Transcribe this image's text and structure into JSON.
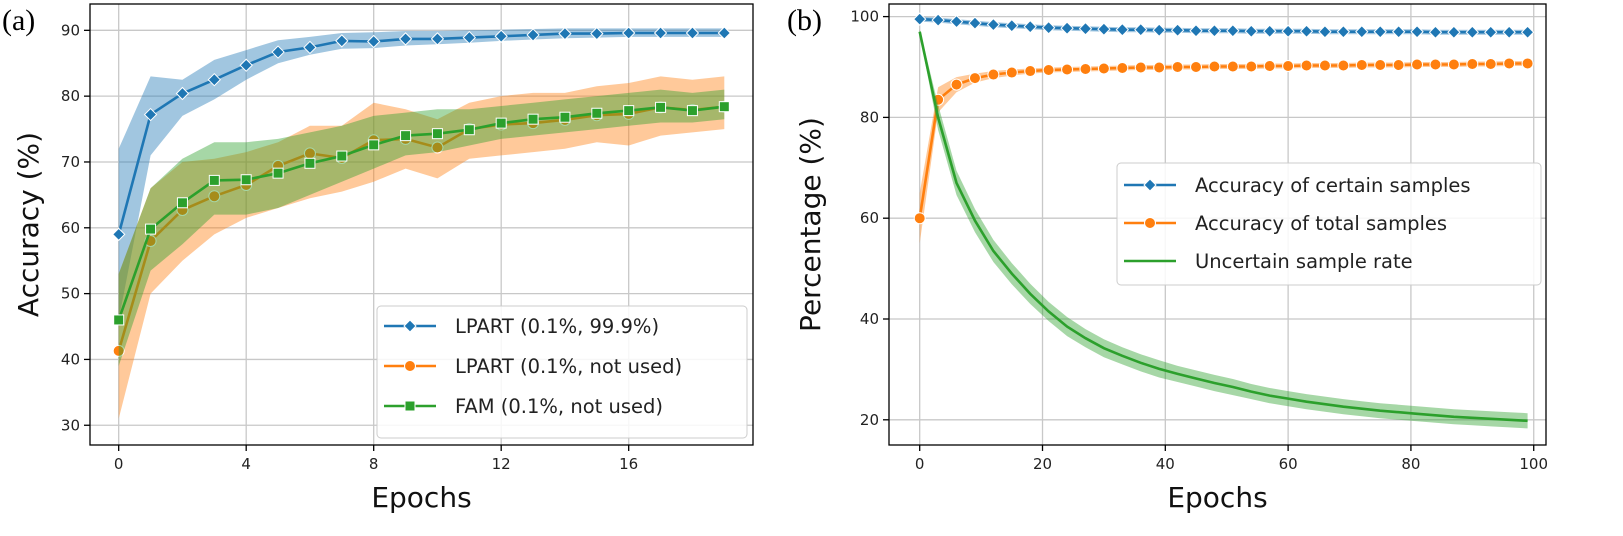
{
  "chart_data": [
    {
      "panel_label": "(a)",
      "type": "line",
      "xlabel": "Epochs",
      "ylabel": "Accuracy (%)",
      "xlim": [
        -0.9,
        19.9
      ],
      "ylim": [
        27,
        94
      ],
      "xticks": [
        0,
        4,
        8,
        12,
        16
      ],
      "yticks": [
        30,
        40,
        50,
        60,
        70,
        80,
        90
      ],
      "grid": true,
      "legend_position": "lower-right",
      "x": [
        0,
        1,
        2,
        3,
        4,
        5,
        6,
        7,
        8,
        9,
        10,
        11,
        12,
        13,
        14,
        15,
        16,
        17,
        18,
        19
      ],
      "series": [
        {
          "name": "LPART (0.1%, 99.9%)",
          "color": "#1f77b4",
          "marker": "diamond",
          "values": [
            59,
            77.2,
            80.4,
            82.5,
            84.7,
            86.7,
            87.4,
            88.4,
            88.3,
            88.7,
            88.7,
            88.9,
            89.1,
            89.3,
            89.5,
            89.5,
            89.6,
            89.6,
            89.6,
            89.6
          ],
          "band_low": [
            46,
            71,
            77,
            79.5,
            82.5,
            85,
            86.3,
            87.2,
            87.3,
            87.7,
            87.9,
            88.1,
            88.4,
            88.6,
            88.8,
            88.9,
            89.0,
            89.0,
            89.0,
            89.0
          ],
          "band_high": [
            72,
            83,
            82.5,
            85.5,
            87,
            88.5,
            89,
            89.6,
            89.7,
            89.9,
            89.9,
            90,
            90.1,
            90.2,
            90.3,
            90.3,
            90.3,
            90.3,
            90.3,
            90.3
          ]
        },
        {
          "name": "LPART (0.1%, not used)",
          "color": "#ff7f0e",
          "marker": "circle",
          "values": [
            41.3,
            58,
            62.7,
            64.8,
            66.5,
            69.4,
            71.3,
            70.6,
            73.3,
            73.5,
            72.2,
            75,
            75.7,
            75.9,
            76.4,
            77.1,
            77.3,
            78.3,
            77.9,
            78.4
          ],
          "band_low": [
            31,
            50,
            55,
            59,
            61.5,
            63,
            64.5,
            65.5,
            67,
            69,
            67.5,
            70.5,
            71,
            71.5,
            72,
            73,
            72.5,
            74,
            74.5,
            75
          ],
          "band_high": [
            53,
            66,
            70,
            70.5,
            71.5,
            73,
            75.5,
            75.5,
            79,
            78,
            76.5,
            79,
            80,
            80.5,
            80.5,
            81.5,
            82,
            83,
            82.5,
            83
          ]
        },
        {
          "name": "FAM (0.1%, not used)",
          "color": "#2ca02c",
          "marker": "square",
          "values": [
            46,
            59.8,
            63.8,
            67.2,
            67.3,
            68.3,
            69.8,
            70.9,
            72.6,
            74,
            74.3,
            74.9,
            75.9,
            76.5,
            76.8,
            77.4,
            77.8,
            78.3,
            77.8,
            78.4
          ],
          "band_low": [
            39,
            53.5,
            57.5,
            62,
            62,
            63,
            65,
            67,
            69,
            71,
            71.5,
            72.5,
            73.5,
            74,
            74.5,
            75,
            75.5,
            76,
            76,
            76.5
          ],
          "band_high": [
            53,
            66,
            70.5,
            73,
            73,
            73.5,
            74.5,
            75.5,
            77,
            77.5,
            78,
            78,
            78.5,
            79,
            79.5,
            80,
            80.5,
            81,
            80.5,
            81
          ]
        }
      ]
    },
    {
      "panel_label": "(b)",
      "type": "line",
      "xlabel": "Epochs",
      "ylabel": "Percentage (%)",
      "xlim": [
        -5,
        102
      ],
      "ylim": [
        15,
        102.5
      ],
      "xticks": [
        0,
        20,
        40,
        60,
        80,
        100
      ],
      "yticks": [
        20,
        40,
        60,
        80,
        100
      ],
      "grid": true,
      "legend_position": "center-right",
      "series": [
        {
          "name": "Accuracy of certain samples",
          "color": "#1f77b4",
          "marker": "diamond",
          "x": [
            0,
            3,
            6,
            9,
            12,
            15,
            18,
            21,
            24,
            27,
            30,
            33,
            36,
            39,
            42,
            45,
            48,
            51,
            54,
            57,
            60,
            63,
            66,
            69,
            72,
            75,
            78,
            81,
            84,
            87,
            90,
            93,
            96,
            99
          ],
          "values": [
            99.5,
            99.3,
            99,
            98.7,
            98.4,
            98.2,
            98,
            97.8,
            97.7,
            97.6,
            97.5,
            97.4,
            97.4,
            97.3,
            97.3,
            97.2,
            97.2,
            97.2,
            97.1,
            97.1,
            97.1,
            97.1,
            97.0,
            97.0,
            97.0,
            97.0,
            97.0,
            97.0,
            96.9,
            96.9,
            96.9,
            96.9,
            96.9,
            96.9
          ],
          "band_halfwidth": 0.5
        },
        {
          "name": "Accuracy of total samples",
          "color": "#ff7f0e",
          "marker": "circle",
          "x": [
            0,
            3,
            6,
            9,
            12,
            15,
            18,
            21,
            24,
            27,
            30,
            33,
            36,
            39,
            42,
            45,
            48,
            51,
            54,
            57,
            60,
            63,
            66,
            69,
            72,
            75,
            78,
            81,
            84,
            87,
            90,
            93,
            96,
            99
          ],
          "values": [
            60,
            83.5,
            86.5,
            87.8,
            88.5,
            88.9,
            89.2,
            89.4,
            89.5,
            89.6,
            89.7,
            89.8,
            89.9,
            89.9,
            90,
            90,
            90.1,
            90.1,
            90.1,
            90.2,
            90.2,
            90.3,
            90.3,
            90.3,
            90.4,
            90.4,
            90.4,
            90.5,
            90.5,
            90.5,
            90.6,
            90.6,
            90.7,
            90.7
          ],
          "band_low": [
            55,
            81,
            85,
            86.9,
            87.8,
            88.3,
            88.7,
            88.9,
            89.0,
            89.1,
            89.2,
            89.3,
            89.4,
            89.4,
            89.5,
            89.5,
            89.6,
            89.6,
            89.6,
            89.7,
            89.7,
            89.8,
            89.8,
            89.8,
            89.9,
            89.9,
            89.9,
            90.0,
            90.0,
            90.0,
            90.1,
            90.1,
            90.2,
            90.2
          ],
          "band_high": [
            65,
            86,
            88,
            88.7,
            89.2,
            89.5,
            89.7,
            89.9,
            90.0,
            90.1,
            90.2,
            90.3,
            90.4,
            90.4,
            90.5,
            90.5,
            90.6,
            90.6,
            90.6,
            90.7,
            90.7,
            90.8,
            90.8,
            90.8,
            90.9,
            90.9,
            90.9,
            91.0,
            91.0,
            91.0,
            91.1,
            91.1,
            91.2,
            91.2
          ]
        },
        {
          "name": "Uncertain sample rate",
          "color": "#2ca02c",
          "marker": "none",
          "x": [
            0,
            3,
            6,
            9,
            12,
            15,
            18,
            21,
            24,
            27,
            30,
            33,
            36,
            39,
            42,
            45,
            48,
            51,
            54,
            57,
            60,
            63,
            66,
            69,
            72,
            75,
            78,
            81,
            84,
            87,
            90,
            93,
            96,
            99
          ],
          "values": [
            97,
            80,
            67,
            59.5,
            53.5,
            49,
            45,
            41.5,
            38.5,
            36.2,
            34.2,
            32.7,
            31.3,
            30.1,
            29.1,
            28.2,
            27.3,
            26.5,
            25.6,
            24.8,
            24.2,
            23.6,
            23.1,
            22.6,
            22.2,
            21.8,
            21.5,
            21.2,
            20.9,
            20.6,
            20.4,
            20.2,
            20.0,
            19.8
          ],
          "band_halfwidth": [
            0.5,
            2.5,
            2.4,
            2.3,
            2.2,
            2.1,
            2.0,
            1.9,
            1.9,
            1.8,
            1.8,
            1.7,
            1.7,
            1.7,
            1.6,
            1.6,
            1.6,
            1.6,
            1.5,
            1.5,
            1.5,
            1.5,
            1.5,
            1.5,
            1.5,
            1.5,
            1.5,
            1.5,
            1.5,
            1.5,
            1.5,
            1.5,
            1.5,
            1.5
          ]
        }
      ]
    }
  ]
}
